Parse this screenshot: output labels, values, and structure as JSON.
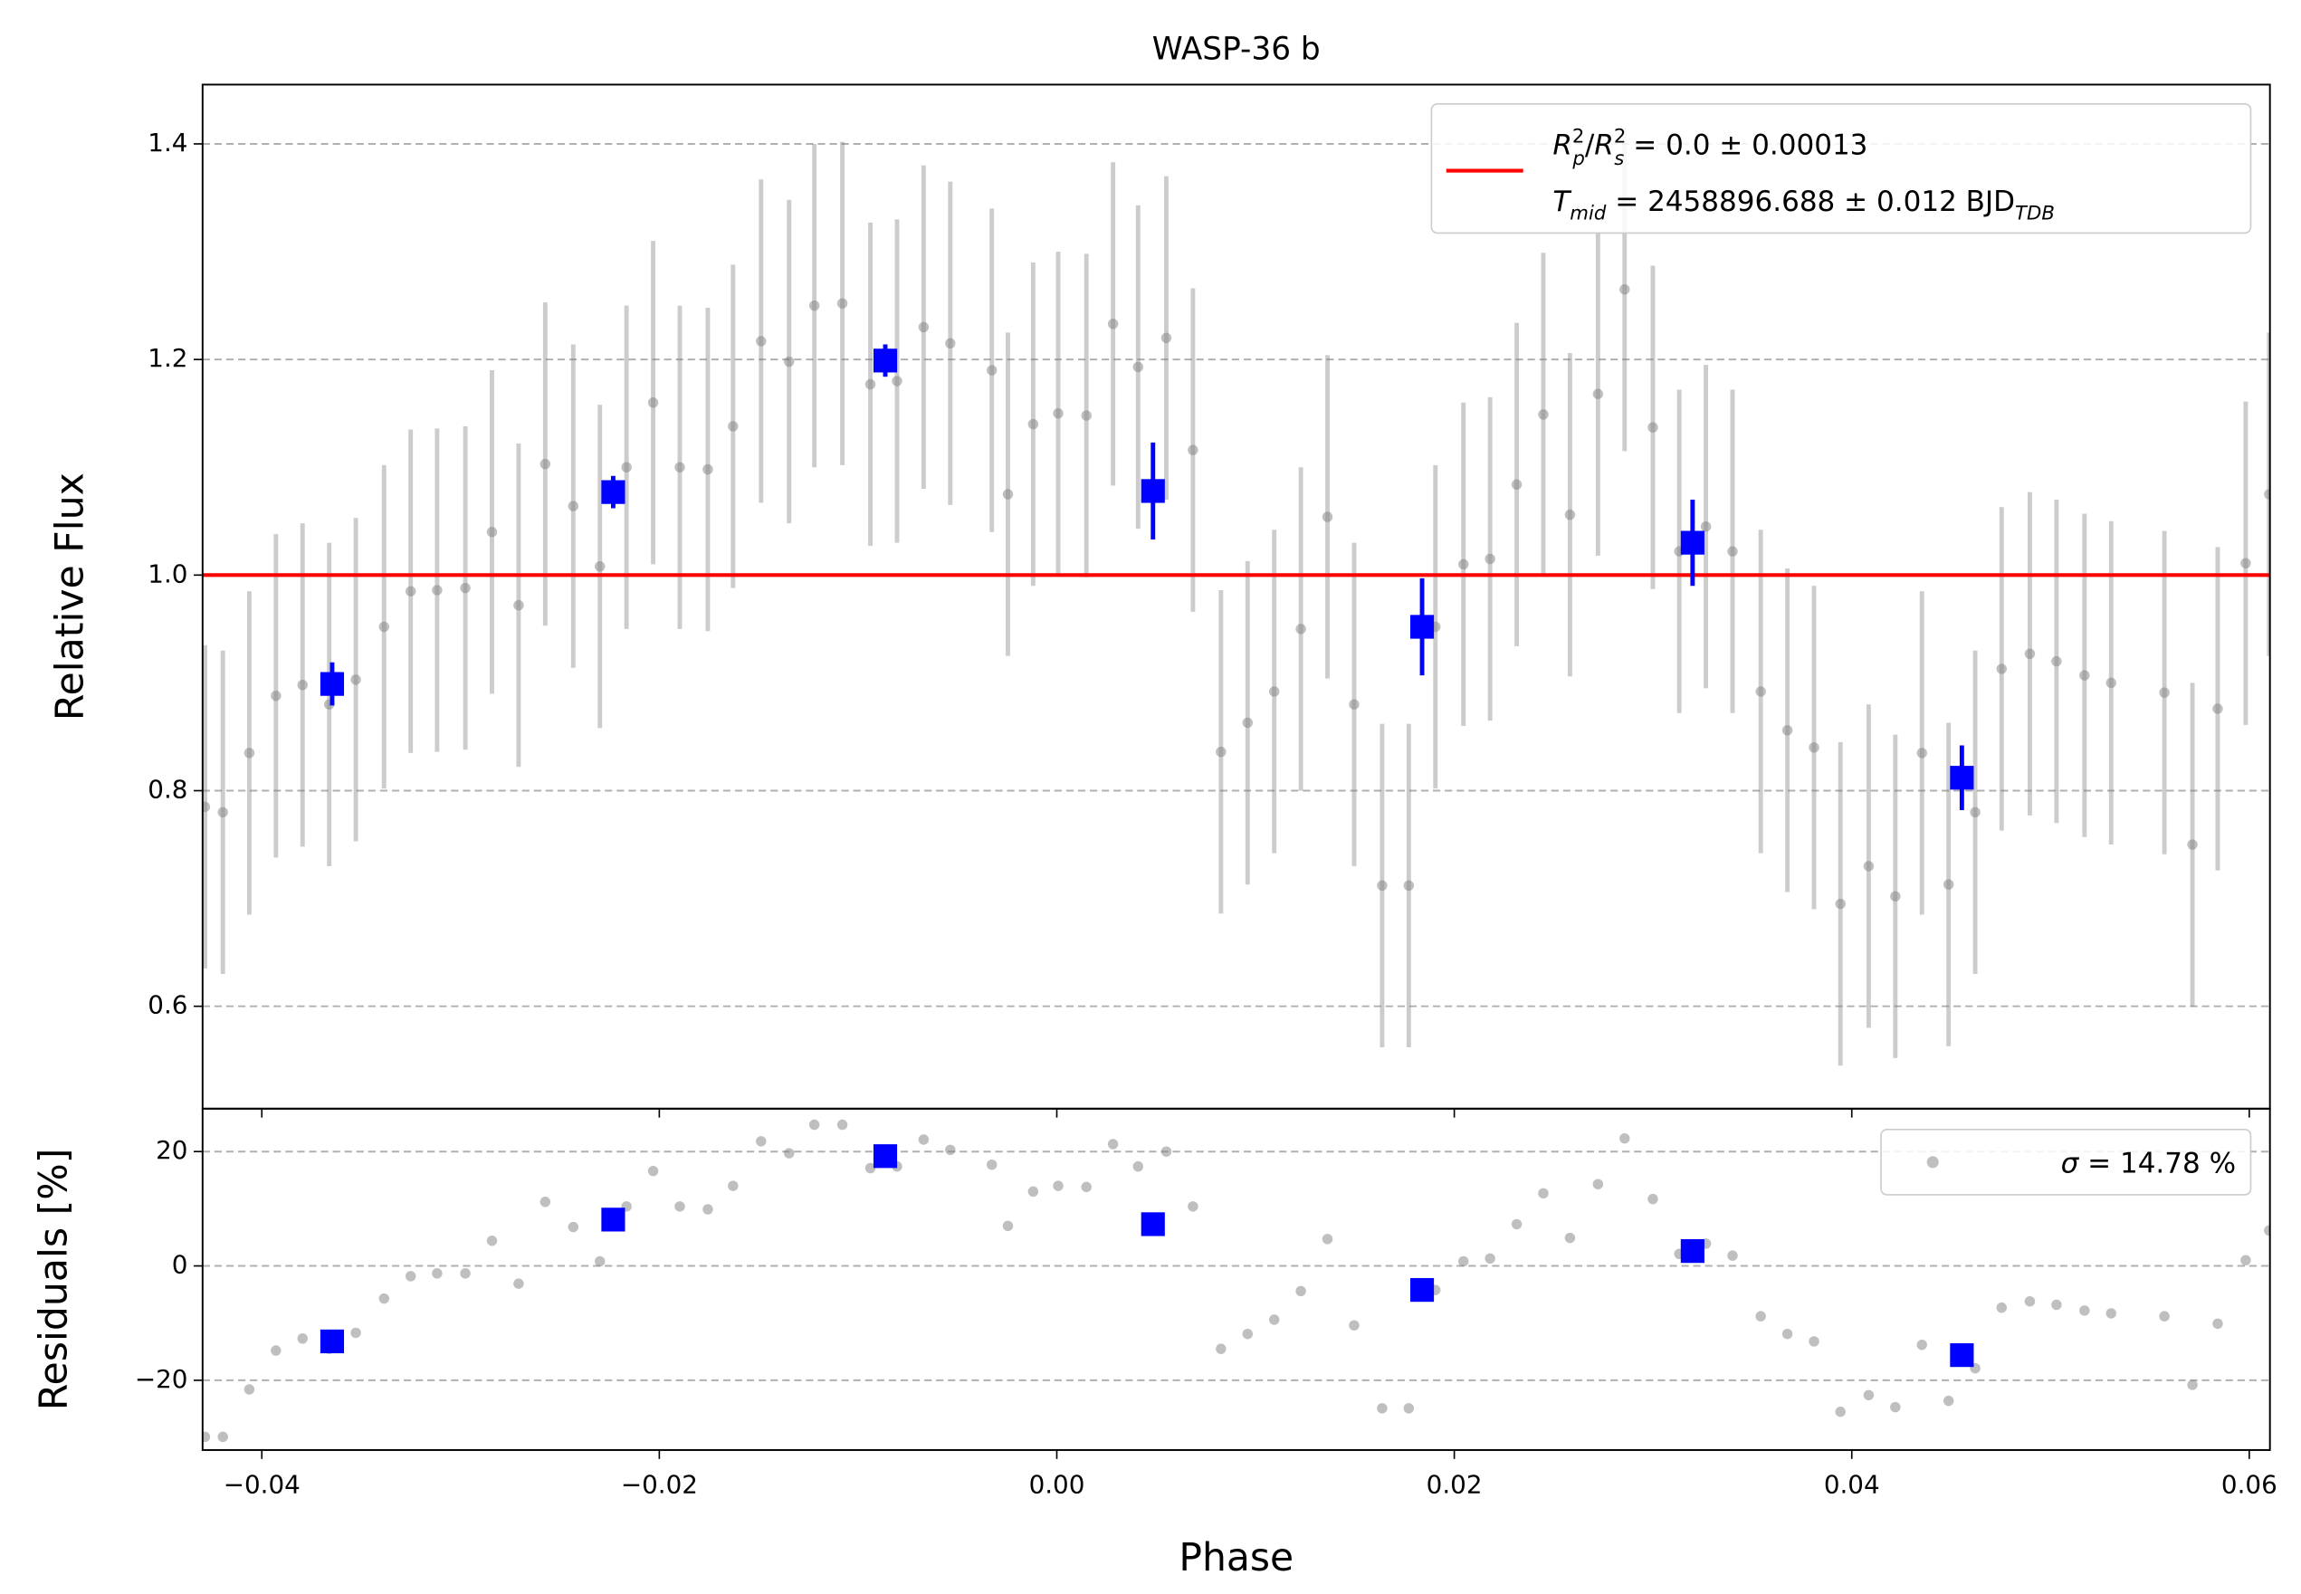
{
  "chart_data": [
    {
      "type": "errorbar",
      "title": "WASP-36 b",
      "ylabel": "Relative Flux",
      "xlim": [
        -0.04298,
        0.06104
      ],
      "ylim": [
        0.505,
        1.455
      ],
      "yticks": [
        0.6,
        0.8,
        {
          "value": 1,
          "label": "1.0"
        },
        1.2,
        1.4
      ],
      "grid": true,
      "legend": "upper right",
      "model": {
        "value": 1,
        "color": "#ff0000",
        "label_parts": [
          "R",
          "2",
          "p",
          "/",
          "R",
          "2",
          "s",
          " = 0.0 ± 0.00013"
        ],
        "label2_parts": [
          "T",
          "mid",
          " = 2458896.688 ± 0.012 BJD",
          "TDB"
        ]
      },
      "series": [
        {
          "color": "#808080",
          "marker": "circle",
          "x": [
            -0.04286,
            -0.04196,
            -0.04063,
            -0.03929,
            -0.03795,
            -0.03661,
            -0.03527,
            -0.03385,
            -0.03251,
            -0.03118,
            -0.02976,
            -0.02842,
            -0.02708,
            -0.02574,
            -0.02433,
            -0.02299,
            -0.02165,
            -0.02031,
            -0.01897,
            -0.01756,
            -0.01629,
            -0.01488,
            -0.01347,
            -0.0122,
            -0.01079,
            -0.00938,
            -0.00804,
            -0.0067,
            -0.00536,
            -0.00327,
            -0.00246,
            -0.00119,
            7e-05,
            0.00149,
            0.00283,
            0.00409,
            0.00551,
            0.00685,
            0.00826,
            0.0096,
            0.01094,
            0.01228,
            0.01362,
            0.01496,
            0.01637,
            0.01771,
            0.01905,
            0.02046,
            0.0218,
            0.02314,
            0.02448,
            0.02582,
            0.02723,
            0.02857,
            0.02999,
            0.03132,
            0.03266,
            0.034,
            0.03542,
            0.03676,
            0.0381,
            0.03943,
            0.04085,
            0.04219,
            0.04353,
            0.04487,
            0.04621,
            0.04754,
            0.04896,
            0.0503,
            0.05171,
            0.05305,
            0.05573,
            0.05714,
            0.05841,
            0.05982,
            0.061
          ],
          "values": [
            0.785,
            0.78,
            0.835,
            0.888,
            0.898,
            0.88,
            0.903,
            0.952,
            0.985,
            0.986,
            0.988,
            1.04,
            0.972,
            1.103,
            1.064,
            1.008,
            1.1,
            1.16,
            1.1,
            1.098,
            1.138,
            1.217,
            1.198,
            1.25,
            1.252,
            1.177,
            1.18,
            1.23,
            1.215,
            1.19,
            1.075,
            1.14,
            1.15,
            1.148,
            1.233,
            1.193,
            1.22,
            1.116,
            0.836,
            0.863,
            0.892,
            0.95,
            1.054,
            0.88,
            0.712,
            0.712,
            0.952,
            1.01,
            1.015,
            1.084,
            1.149,
            1.056,
            1.168,
            1.265,
            1.137,
            1.022,
            1.045,
            1.022,
            0.892,
            0.856,
            0.84,
            0.695,
            0.73,
            0.702,
            0.835,
            0.713,
            0.78,
            0.913,
            0.927,
            0.92,
            0.907,
            0.9,
            0.891,
            0.75,
            0.876,
            1.011,
            1.075
          ],
          "errors": [
            0.15,
            0.15,
            0.15,
            0.15,
            0.15,
            0.15,
            0.15,
            0.15,
            0.15,
            0.15,
            0.15,
            0.15,
            0.15,
            0.15,
            0.15,
            0.15,
            0.15,
            0.15,
            0.15,
            0.15,
            0.15,
            0.15,
            0.15,
            0.15,
            0.15,
            0.15,
            0.15,
            0.15,
            0.15,
            0.15,
            0.15,
            0.15,
            0.15,
            0.15,
            0.15,
            0.15,
            0.15,
            0.15,
            0.15,
            0.15,
            0.15,
            0.15,
            0.15,
            0.15,
            0.15,
            0.15,
            0.15,
            0.15,
            0.15,
            0.15,
            0.15,
            0.15,
            0.15,
            0.15,
            0.15,
            0.15,
            0.15,
            0.15,
            0.15,
            0.15,
            0.15,
            0.15,
            0.15,
            0.15,
            0.15,
            0.15,
            0.15,
            0.15,
            0.15,
            0.15,
            0.15,
            0.15,
            0.15,
            0.15,
            0.15,
            0.15,
            0.15
          ]
        },
        {
          "color": "#0000ff",
          "marker": "square",
          "x": [
            -0.03646,
            -0.02232,
            -0.00863,
            0.00484,
            0.01838,
            0.03199,
            0.04554
          ],
          "values": [
            0.899,
            1.077,
            1.199,
            1.078,
            0.952,
            1.03,
            0.812
          ],
          "errors": [
            0.02,
            0.015,
            0.015,
            0.045,
            0.045,
            0.04,
            0.03
          ]
        }
      ]
    },
    {
      "type": "scatter",
      "xlabel": "Phase",
      "ylabel": "Residuals [%]",
      "xlim": [
        -0.04298,
        0.06104
      ],
      "ylim": [
        -32.2,
        27.5
      ],
      "xticks": [
        {
          "value": -0.04,
          "label": "−0.04"
        },
        {
          "value": -0.02,
          "label": "−0.02"
        },
        {
          "value": 0,
          "label": "0.00"
        },
        0.02,
        0.04,
        0.06
      ],
      "yticks": [
        {
          "value": -20,
          "label": "−20"
        },
        0,
        20
      ],
      "grid": true,
      "legend": "upper right",
      "legend_parts": [
        "σ",
        " = 14.78 %"
      ],
      "series": [
        {
          "color": "#808080",
          "marker": "circle",
          "x": [
            -0.04286,
            -0.04196,
            -0.04063,
            -0.03929,
            -0.03795,
            -0.03661,
            -0.03527,
            -0.03385,
            -0.03251,
            -0.03118,
            -0.02976,
            -0.02842,
            -0.02708,
            -0.02574,
            -0.02433,
            -0.02299,
            -0.02165,
            -0.02031,
            -0.01897,
            -0.01756,
            -0.01629,
            -0.01488,
            -0.01347,
            -0.0122,
            -0.01079,
            -0.00938,
            -0.00804,
            -0.0067,
            -0.00536,
            -0.00327,
            -0.00246,
            -0.00119,
            7e-05,
            0.00149,
            0.00283,
            0.00409,
            0.00551,
            0.00685,
            0.00826,
            0.0096,
            0.01094,
            0.01228,
            0.01362,
            0.01496,
            0.01637,
            0.01771,
            0.01905,
            0.02046,
            0.0218,
            0.02314,
            0.02448,
            0.02582,
            0.02723,
            0.02857,
            0.02999,
            0.03132,
            0.03266,
            0.034,
            0.03542,
            0.03676,
            0.0381,
            0.03943,
            0.04085,
            0.04219,
            0.04353,
            0.04487,
            0.04621,
            0.04754,
            0.04896,
            0.0503,
            0.05171,
            0.05305,
            0.05573,
            0.05714,
            0.05841,
            0.05982,
            0.061
          ],
          "values": [
            -29.9,
            -29.9,
            -21.6,
            -14.8,
            -12.7,
            -14.5,
            -11.7,
            -5.7,
            -1.8,
            -1.3,
            -1.3,
            4.4,
            -3.1,
            11.2,
            6.8,
            0.8,
            10.4,
            16.6,
            10.4,
            9.9,
            14,
            21.8,
            19.7,
            24.7,
            24.7,
            17.1,
            17.4,
            22.1,
            20.3,
            17.7,
            7,
            13,
            14,
            13.8,
            21.3,
            17.4,
            20,
            10.4,
            -14.5,
            -11.9,
            -9.4,
            -4.4,
            4.7,
            -10.4,
            -24.9,
            -24.9,
            -4.2,
            0.8,
            1.3,
            7.3,
            12.7,
            4.9,
            14.3,
            22.3,
            11.7,
            2.1,
            3.9,
            1.8,
            -8.8,
            -11.9,
            -13.2,
            -25.5,
            -22.6,
            -24.7,
            -13.8,
            -23.6,
            -17.9,
            -7.3,
            -6.2,
            -6.8,
            -7.8,
            -8.3,
            -8.8,
            -20.8,
            -10.1,
            1,
            6.2
          ]
        },
        {
          "color": "#0000ff",
          "marker": "square",
          "x": [
            -0.03646,
            -0.02232,
            -0.00863,
            0.00484,
            0.01838,
            0.03199,
            0.04554
          ],
          "values": [
            -13.2,
            8.1,
            19.2,
            7.3,
            -4.2,
            2.6,
            -15.6
          ]
        }
      ]
    }
  ]
}
